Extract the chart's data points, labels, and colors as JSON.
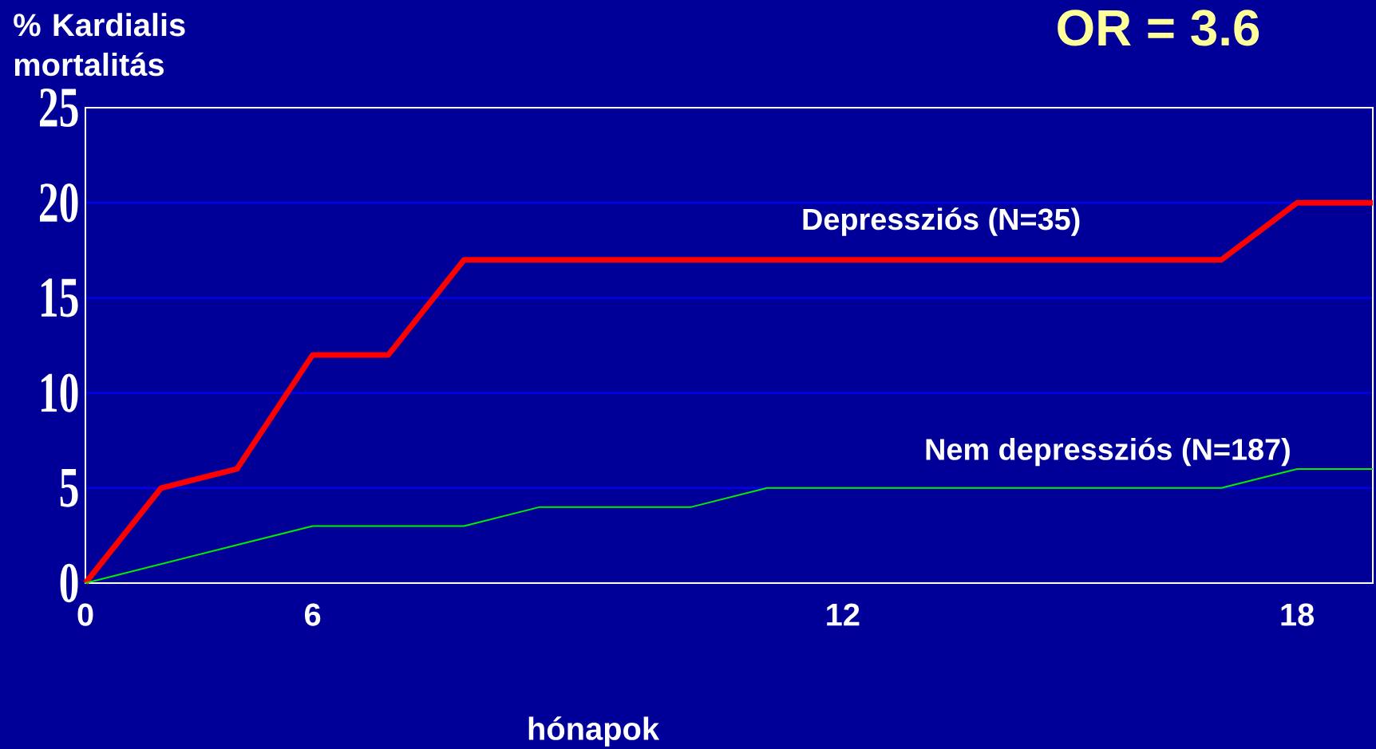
{
  "chart_data": {
    "type": "line",
    "title": "OR = 3.6",
    "xlabel": "hónapok",
    "ylabel": "% Kardialis mortalitás",
    "categories": [
      "0",
      null,
      null,
      "6",
      null,
      null,
      null,
      null,
      null,
      null,
      "12",
      null,
      null,
      null,
      null,
      null,
      "18",
      null
    ],
    "series": [
      {
        "name": "Depressziós (N=35)",
        "color": "#ff0000",
        "values": [
          0,
          5,
          6,
          12,
          12,
          17,
          17,
          17,
          17,
          17,
          17,
          17,
          17,
          17,
          17,
          17,
          20,
          20
        ]
      },
      {
        "name": "Nem depressziós (N=187)",
        "color": "#00ee00",
        "values": [
          0,
          1,
          2,
          3,
          3,
          3,
          4,
          4,
          4,
          5,
          5,
          5,
          5,
          5,
          5,
          5,
          6,
          6
        ]
      }
    ],
    "ylim": [
      0,
      25
    ],
    "yticks": [
      0,
      5,
      10,
      15,
      20,
      25
    ],
    "grid": "y",
    "marker": "none",
    "line_style": "solid"
  }
}
